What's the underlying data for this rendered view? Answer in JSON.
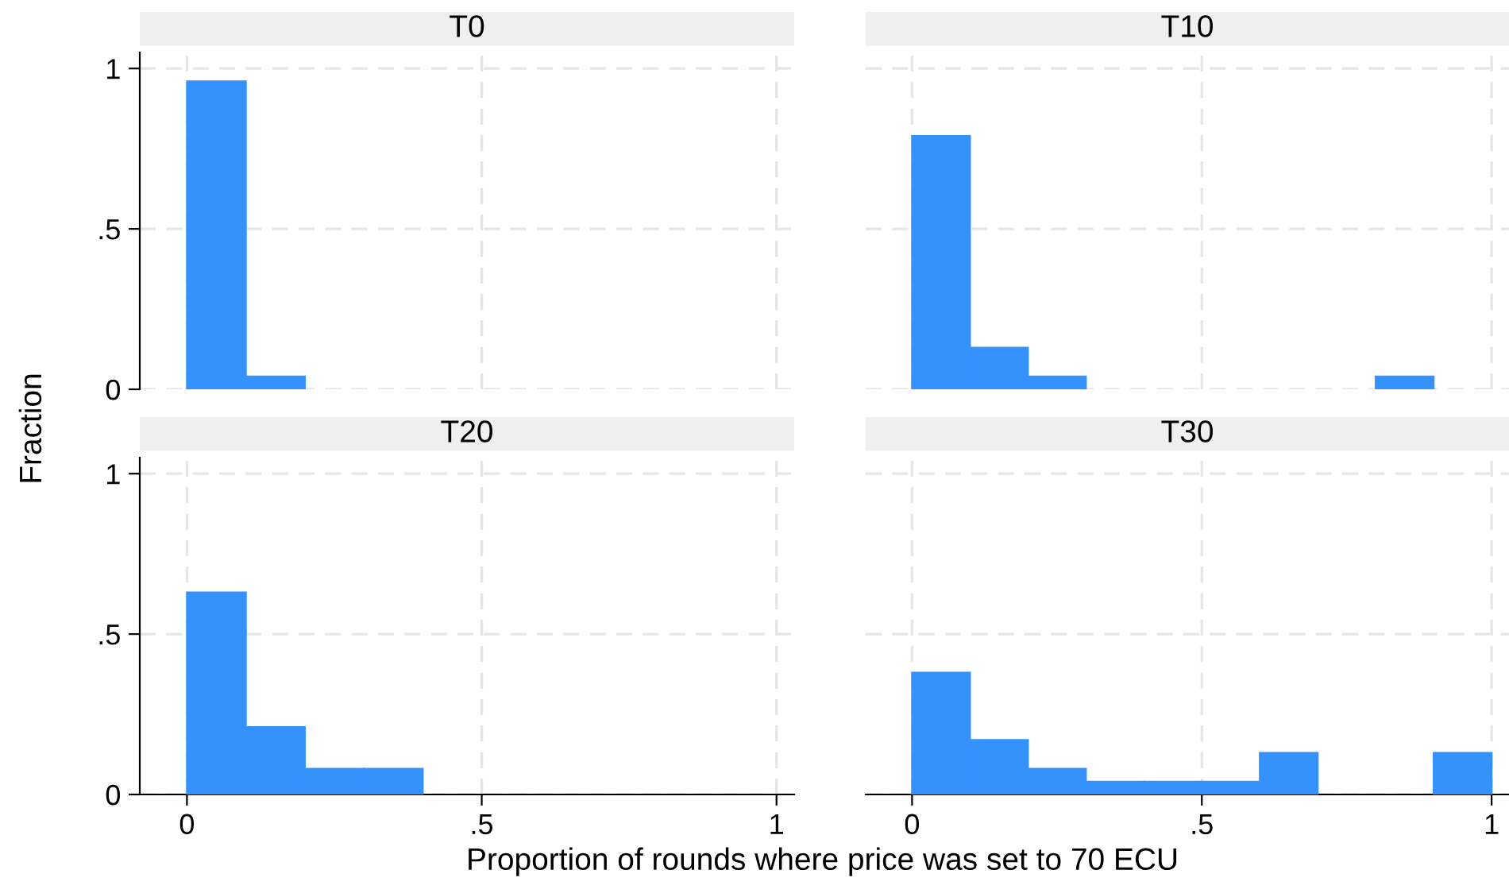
{
  "chart_data": [
    {
      "type": "histogram",
      "title": "T0",
      "ylabel": "Fraction",
      "bins": [
        0,
        0.1,
        0.2,
        0.3,
        0.4,
        0.5,
        0.6,
        0.7,
        0.8,
        0.9,
        1
      ],
      "values": [
        0.96,
        0.04,
        0,
        0,
        0,
        0,
        0,
        0,
        0,
        0
      ],
      "color": "#3592fd",
      "xlim": [
        -0.08,
        1.03
      ],
      "ylim": [
        0,
        1.05
      ],
      "xticks": [
        {
          "value": 0,
          "label": null
        },
        {
          "value": 0.5,
          "label": null
        },
        {
          "value": 1,
          "label": null
        }
      ],
      "yticks": [
        0,
        {
          "value": 0.5,
          "label": ".5"
        },
        1
      ],
      "grid": true,
      "tick_labels": "y"
    },
    {
      "type": "histogram",
      "title": "T10",
      "bins": [
        0,
        0.1,
        0.2,
        0.3,
        0.4,
        0.5,
        0.6,
        0.7,
        0.8,
        0.9,
        1
      ],
      "values": [
        0.79,
        0.13,
        0.04,
        0,
        0,
        0,
        0,
        0,
        0.04,
        0
      ],
      "color": "#3592fd",
      "xlim": [
        -0.08,
        1.03
      ],
      "ylim": [
        0,
        1.05
      ],
      "xticks": [
        {
          "value": 0,
          "label": null
        },
        {
          "value": 0.5,
          "label": null
        },
        {
          "value": 1,
          "label": null
        }
      ],
      "yticks": [
        {
          "value": 0,
          "label": null
        },
        {
          "value": 0.5,
          "label": null
        },
        {
          "value": 1,
          "label": null
        }
      ],
      "grid": true,
      "tick_labels": false
    },
    {
      "type": "histogram",
      "title": "T20",
      "bins": [
        0,
        0.1,
        0.2,
        0.3,
        0.4,
        0.5,
        0.6,
        0.7,
        0.8,
        0.9,
        1
      ],
      "values": [
        0.63,
        0.21,
        0.08,
        0.08,
        0,
        0,
        0,
        0,
        0,
        0
      ],
      "color": "#3592fd",
      "xlim": [
        -0.08,
        1.03
      ],
      "ylim": [
        0,
        1.05
      ],
      "xticks": [
        0,
        {
          "value": 0.5,
          "label": ".5"
        },
        1
      ],
      "yticks": [
        0,
        {
          "value": 0.5,
          "label": ".5"
        },
        1
      ],
      "grid": true
    },
    {
      "type": "histogram",
      "title": "T30",
      "xlabel": "Proportion of rounds where price was set to 70 ECU",
      "bins": [
        0,
        0.1,
        0.2,
        0.3,
        0.4,
        0.5,
        0.6,
        0.7,
        0.8,
        0.9,
        1
      ],
      "values": [
        0.38,
        0.17,
        0.08,
        0.04,
        0.04,
        0.04,
        0.13,
        0,
        0,
        0.13
      ],
      "color": "#3592fd",
      "xlim": [
        -0.08,
        1.03
      ],
      "ylim": [
        0,
        1.05
      ],
      "xticks": [
        0,
        {
          "value": 0.5,
          "label": ".5"
        },
        1
      ],
      "yticks": [
        {
          "value": 0,
          "label": null
        },
        {
          "value": 0.5,
          "label": null
        },
        {
          "value": 1,
          "label": null
        }
      ],
      "grid": true,
      "tick_labels": "x"
    }
  ]
}
